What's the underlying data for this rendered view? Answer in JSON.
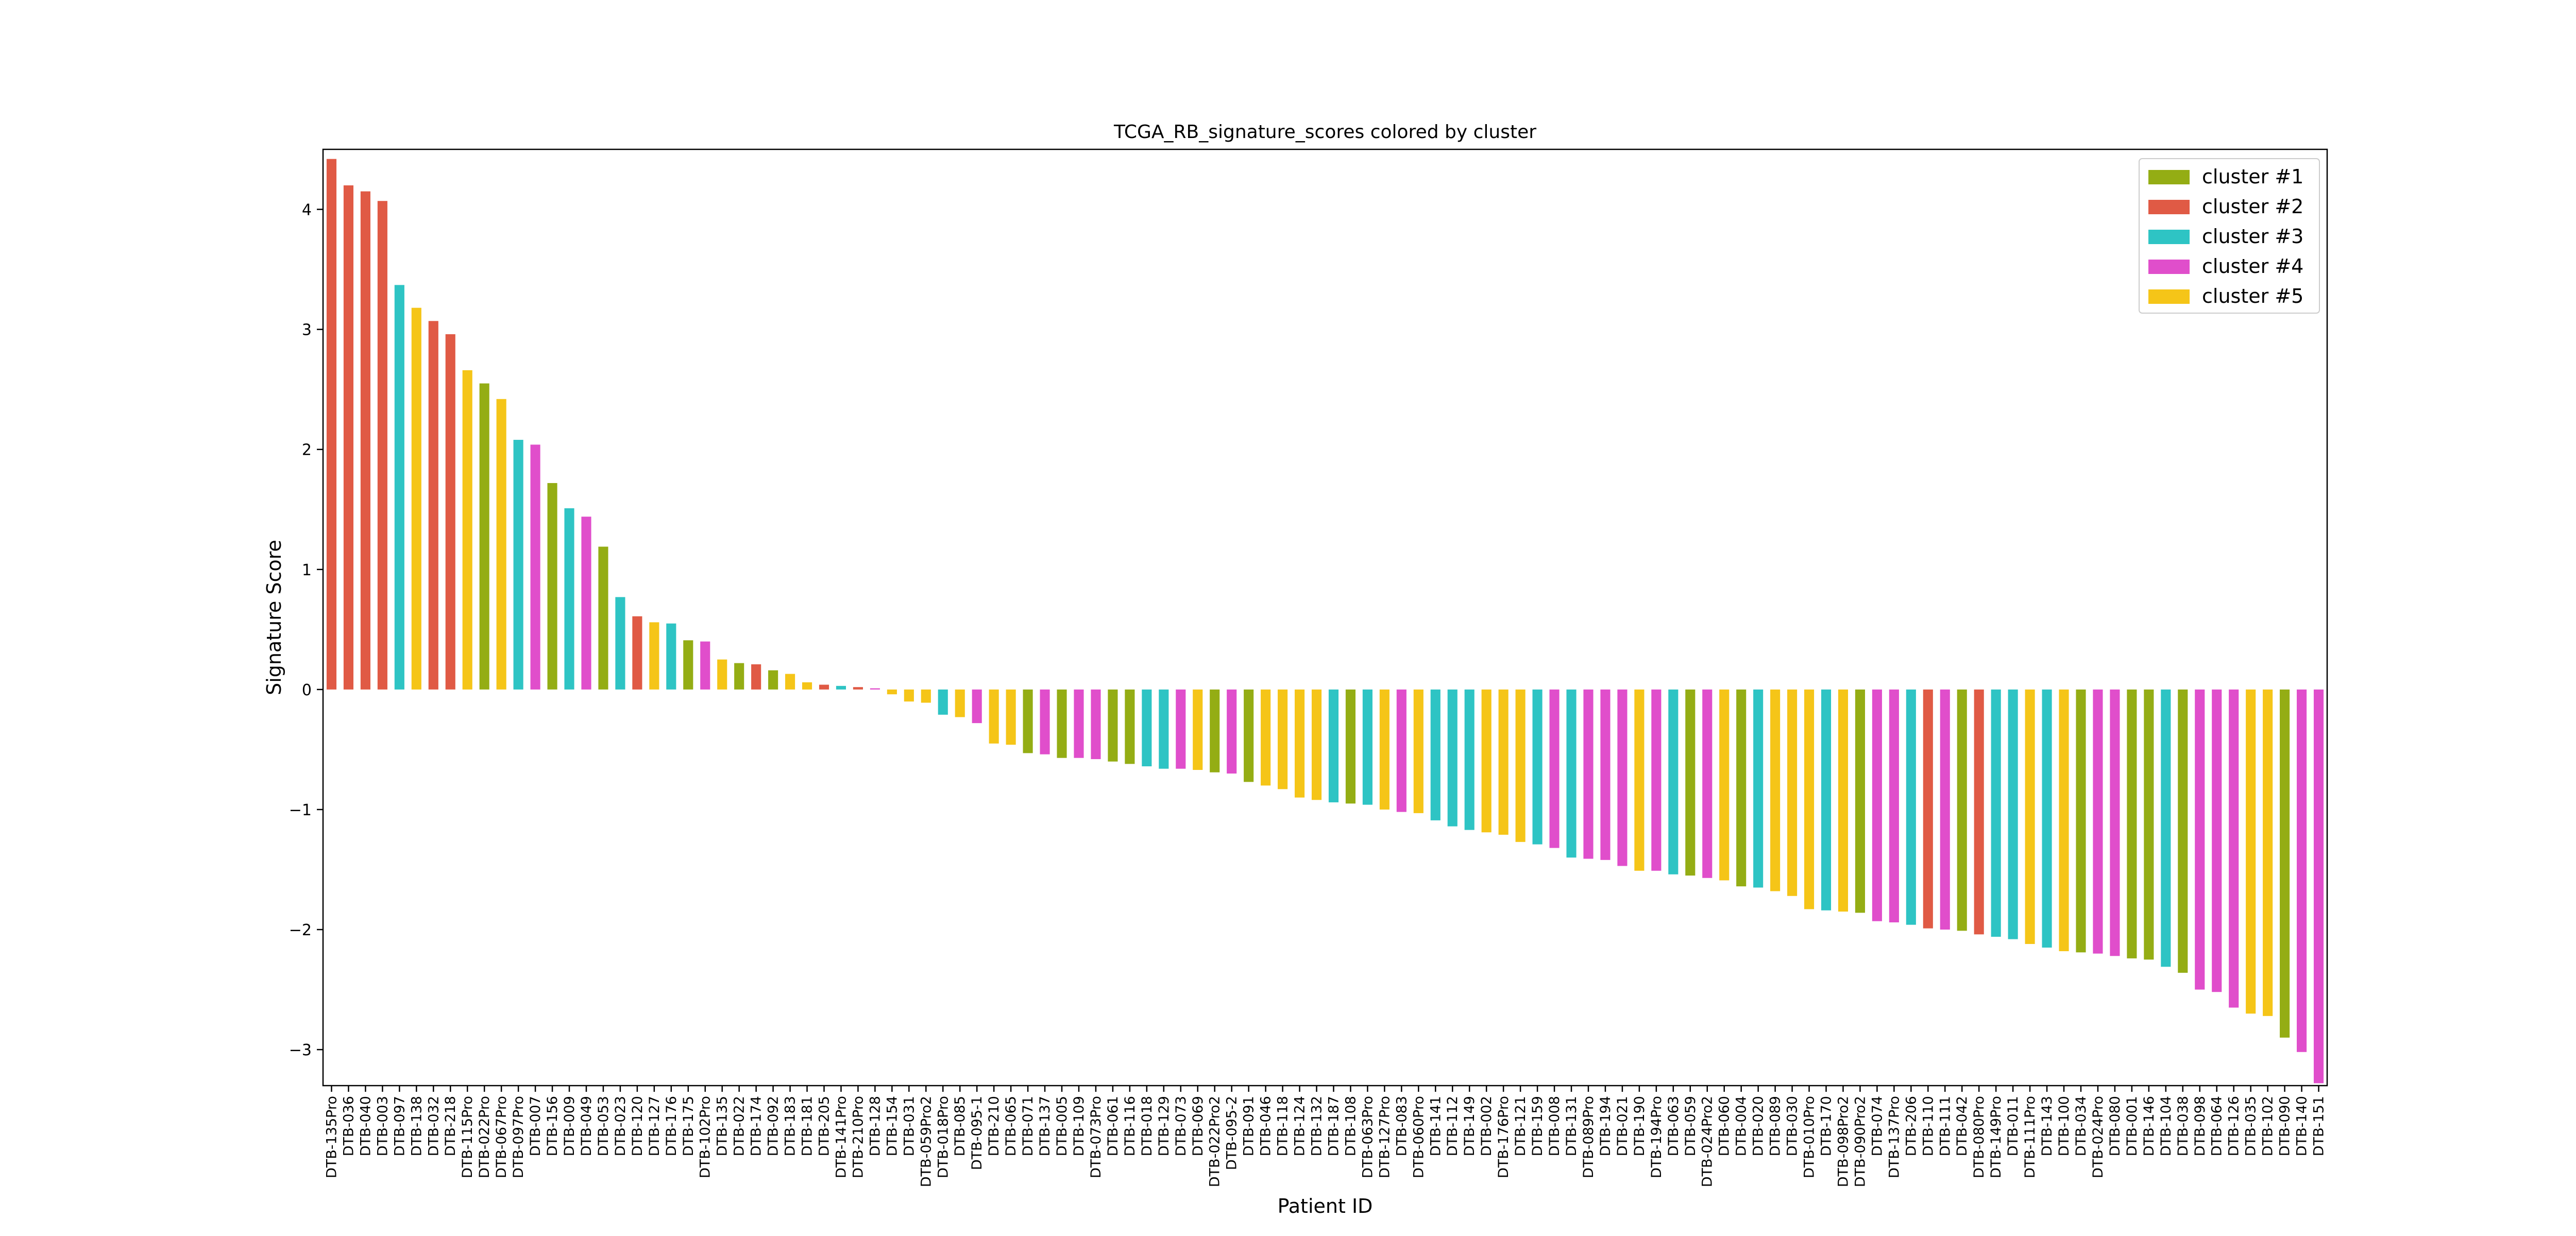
{
  "chart_data": {
    "type": "bar",
    "title": "TCGA_RB_signature_scores colored by cluster",
    "xlabel": "Patient ID",
    "ylabel": "Signature Score",
    "ylim": [
      -3.3,
      4.5
    ],
    "yticks": [
      -3,
      -2,
      -1,
      0,
      1,
      2,
      3,
      4
    ],
    "grid": false,
    "legend_position": "top-right",
    "cluster_colors": {
      "1": "#94ad14",
      "2": "#e05a45",
      "3": "#2ec4c4",
      "4": "#e04ecb",
      "5": "#f5c518"
    },
    "legend": [
      {
        "cluster": 1,
        "label": "cluster #1"
      },
      {
        "cluster": 2,
        "label": "cluster #2"
      },
      {
        "cluster": 3,
        "label": "cluster #3"
      },
      {
        "cluster": 4,
        "label": "cluster #4"
      },
      {
        "cluster": 5,
        "label": "cluster #5"
      }
    ],
    "categories": [
      "DTB-135Pro",
      "DTB-036",
      "DTB-040",
      "DTB-003",
      "DTB-097",
      "DTB-138",
      "DTB-032",
      "DTB-218",
      "DTB-115Pro",
      "DTB-022Pro",
      "DTB-067Pro",
      "DTB-097Pro",
      "DTB-007",
      "DTB-156",
      "DTB-009",
      "DTB-049",
      "DTB-053",
      "DTB-023",
      "DTB-120",
      "DTB-127",
      "DTB-176",
      "DTB-175",
      "DTB-102Pro",
      "DTB-135",
      "DTB-022",
      "DTB-174",
      "DTB-092",
      "DTB-183",
      "DTB-181",
      "DTB-205",
      "DTB-141Pro",
      "DTB-210Pro",
      "DTB-128",
      "DTB-154",
      "DTB-031",
      "DTB-059Pro2",
      "DTB-018Pro",
      "DTB-085",
      "DTB-095-1",
      "DTB-210",
      "DTB-065",
      "DTB-071",
      "DTB-137",
      "DTB-005",
      "DTB-109",
      "DTB-073Pro",
      "DTB-061",
      "DTB-116",
      "DTB-018",
      "DTB-129",
      "DTB-073",
      "DTB-069",
      "DTB-022Pro2",
      "DTB-095-2",
      "DTB-091",
      "DTB-046",
      "DTB-118",
      "DTB-124",
      "DTB-132",
      "DTB-187",
      "DTB-108",
      "DTB-063Pro",
      "DTB-127Pro",
      "DTB-083",
      "DTB-060Pro",
      "DTB-141",
      "DTB-112",
      "DTB-149",
      "DTB-002",
      "DTB-176Pro",
      "DTB-121",
      "DTB-159",
      "DTB-008",
      "DTB-131",
      "DTB-089Pro",
      "DTB-194",
      "DTB-021",
      "DTB-190",
      "DTB-194Pro",
      "DTB-063",
      "DTB-059",
      "DTB-024Pro2",
      "DTB-060",
      "DTB-004",
      "DTB-020",
      "DTB-089",
      "DTB-030",
      "DTB-010Pro",
      "DTB-170",
      "DTB-098Pro2",
      "DTB-090Pro2",
      "DTB-074",
      "DTB-137Pro",
      "DTB-206",
      "DTB-110",
      "DTB-111",
      "DTB-042",
      "DTB-080Pro",
      "DTB-149Pro",
      "DTB-011",
      "DTB-111Pro",
      "DTB-143",
      "DTB-100",
      "DTB-034",
      "DTB-024Pro",
      "DTB-080",
      "DTB-001",
      "DTB-146",
      "DTB-104",
      "DTB-038",
      "DTB-098",
      "DTB-064",
      "DTB-126",
      "DTB-035",
      "DTB-102",
      "DTB-090",
      "DTB-140",
      "DTB-151"
    ],
    "values": [
      4.42,
      4.2,
      4.15,
      4.07,
      3.37,
      3.18,
      3.07,
      2.96,
      2.66,
      2.55,
      2.42,
      2.08,
      2.04,
      1.72,
      1.51,
      1.44,
      1.19,
      0.77,
      0.61,
      0.56,
      0.55,
      0.41,
      0.4,
      0.25,
      0.22,
      0.21,
      0.16,
      0.13,
      0.06,
      0.04,
      0.03,
      0.02,
      0.01,
      -0.04,
      -0.1,
      -0.11,
      -0.21,
      -0.23,
      -0.28,
      -0.45,
      -0.46,
      -0.53,
      -0.54,
      -0.57,
      -0.57,
      -0.58,
      -0.6,
      -0.62,
      -0.64,
      -0.66,
      -0.66,
      -0.67,
      -0.69,
      -0.7,
      -0.77,
      -0.8,
      -0.83,
      -0.9,
      -0.92,
      -0.94,
      -0.95,
      -0.96,
      -1.0,
      -1.02,
      -1.03,
      -1.09,
      -1.14,
      -1.17,
      -1.19,
      -1.21,
      -1.27,
      -1.29,
      -1.32,
      -1.4,
      -1.41,
      -1.42,
      -1.47,
      -1.51,
      -1.51,
      -1.54,
      -1.55,
      -1.57,
      -1.59,
      -1.64,
      -1.65,
      -1.68,
      -1.72,
      -1.83,
      -1.84,
      -1.85,
      -1.86,
      -1.93,
      -1.94,
      -1.96,
      -1.99,
      -2.0,
      -2.01,
      -2.04,
      -2.06,
      -2.08,
      -2.12,
      -2.15,
      -2.18,
      -2.19,
      -2.2,
      -2.22,
      -2.24,
      -2.25,
      -2.31,
      -2.36,
      -2.5,
      -2.52,
      -2.65,
      -2.7,
      -2.72,
      -2.9,
      -3.02,
      -3.28
    ],
    "clusters": [
      2,
      2,
      2,
      2,
      3,
      5,
      2,
      2,
      5,
      1,
      5,
      3,
      4,
      1,
      3,
      4,
      1,
      3,
      2,
      5,
      3,
      1,
      4,
      5,
      1,
      2,
      1,
      5,
      5,
      2,
      3,
      2,
      4,
      5,
      5,
      5,
      3,
      5,
      4,
      5,
      5,
      1,
      4,
      1,
      4,
      4,
      1,
      1,
      3,
      3,
      4,
      5,
      1,
      4,
      1,
      5,
      5,
      5,
      5,
      3,
      1,
      3,
      5,
      4,
      5,
      3,
      3,
      3,
      5,
      5,
      5,
      3,
      4,
      3,
      4,
      4,
      4,
      5,
      4,
      3,
      1,
      4,
      5,
      1,
      3,
      5,
      5,
      5,
      3,
      5,
      1,
      4,
      4,
      3,
      2,
      4,
      1,
      2,
      3,
      3,
      5,
      3,
      5,
      1,
      4,
      4,
      1,
      1,
      3,
      1,
      4,
      4,
      4,
      5,
      5,
      1,
      4,
      4
    ]
  }
}
